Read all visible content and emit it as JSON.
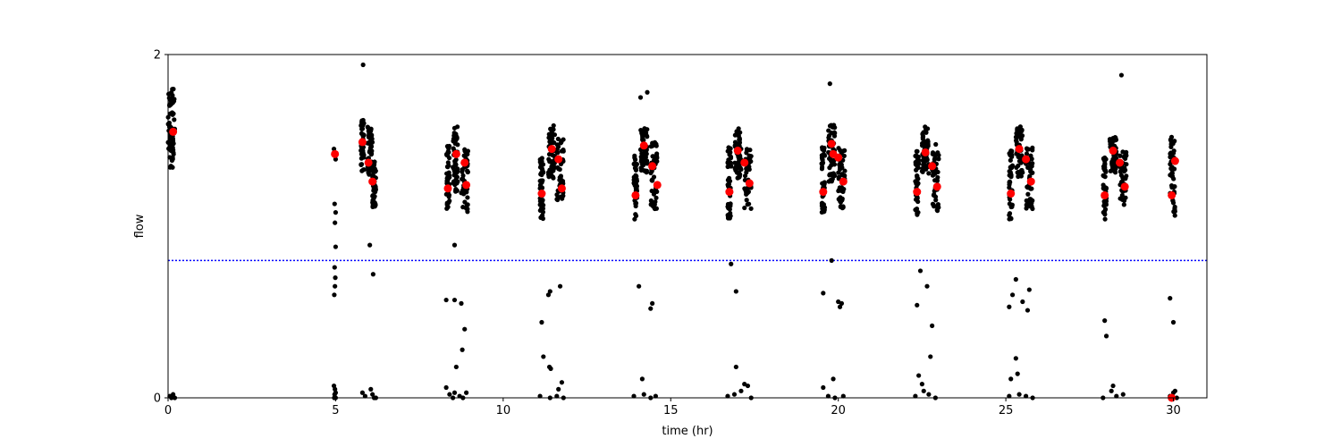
{
  "chart_data": {
    "type": "scatter",
    "title": "",
    "xlabel": "time (hr)",
    "ylabel": "flow",
    "xlim": [
      0,
      31
    ],
    "ylim": [
      0,
      2
    ],
    "xticks": [
      0,
      5,
      10,
      15,
      20,
      25,
      30
    ],
    "yticks": [
      0,
      2
    ],
    "grid": false,
    "threshold_line": {
      "y": 0.8,
      "color": "#0000ff",
      "style": "dotted"
    },
    "colors": {
      "points": "#000000",
      "highlight": "#ff0000",
      "threshold": "#0000ff"
    },
    "clusters": [
      {
        "x": [
          0.0,
          0.2
        ],
        "y": [
          1.34,
          1.8
        ],
        "n": 70
      },
      {
        "x": [
          5.75,
          5.85
        ],
        "y": [
          1.32,
          1.62
        ],
        "n": 45
      },
      {
        "x": [
          5.95,
          6.1
        ],
        "y": [
          1.3,
          1.58
        ],
        "n": 45
      },
      {
        "x": [
          6.1,
          6.2
        ],
        "y": [
          1.1,
          1.38
        ],
        "n": 40
      },
      {
        "x": [
          8.3,
          8.4
        ],
        "y": [
          1.1,
          1.48
        ],
        "n": 40
      },
      {
        "x": [
          8.5,
          8.65
        ],
        "y": [
          1.2,
          1.58
        ],
        "n": 50
      },
      {
        "x": [
          8.75,
          8.95
        ],
        "y": [
          1.08,
          1.45
        ],
        "n": 45
      },
      {
        "x": [
          11.1,
          11.2
        ],
        "y": [
          1.04,
          1.42
        ],
        "n": 45
      },
      {
        "x": [
          11.35,
          11.55
        ],
        "y": [
          1.28,
          1.6
        ],
        "n": 50
      },
      {
        "x": [
          11.6,
          11.8
        ],
        "y": [
          1.14,
          1.52
        ],
        "n": 45
      },
      {
        "x": [
          13.9,
          14.0
        ],
        "y": [
          1.04,
          1.42
        ],
        "n": 45
      },
      {
        "x": [
          14.1,
          14.3
        ],
        "y": [
          1.3,
          1.58
        ],
        "n": 50
      },
      {
        "x": [
          14.4,
          14.6
        ],
        "y": [
          1.1,
          1.5
        ],
        "n": 45
      },
      {
        "x": [
          16.7,
          16.8
        ],
        "y": [
          1.04,
          1.46
        ],
        "n": 45
      },
      {
        "x": [
          16.9,
          17.1
        ],
        "y": [
          1.28,
          1.58
        ],
        "n": 50
      },
      {
        "x": [
          17.2,
          17.4
        ],
        "y": [
          1.1,
          1.48
        ],
        "n": 45
      },
      {
        "x": [
          19.5,
          19.6
        ],
        "y": [
          1.08,
          1.46
        ],
        "n": 45
      },
      {
        "x": [
          19.7,
          19.9
        ],
        "y": [
          1.26,
          1.6
        ],
        "n": 50
      },
      {
        "x": [
          20.0,
          20.2
        ],
        "y": [
          1.1,
          1.46
        ],
        "n": 45
      },
      {
        "x": [
          22.3,
          22.4
        ],
        "y": [
          1.06,
          1.46
        ],
        "n": 45
      },
      {
        "x": [
          22.5,
          22.7
        ],
        "y": [
          1.28,
          1.58
        ],
        "n": 50
      },
      {
        "x": [
          22.8,
          23.0
        ],
        "y": [
          1.08,
          1.48
        ],
        "n": 45
      },
      {
        "x": [
          25.1,
          25.2
        ],
        "y": [
          1.04,
          1.44
        ],
        "n": 45
      },
      {
        "x": [
          25.3,
          25.5
        ],
        "y": [
          1.28,
          1.58
        ],
        "n": 50
      },
      {
        "x": [
          25.6,
          25.8
        ],
        "y": [
          1.1,
          1.46
        ],
        "n": 45
      },
      {
        "x": [
          27.9,
          28.0
        ],
        "y": [
          1.04,
          1.4
        ],
        "n": 45
      },
      {
        "x": [
          28.1,
          28.3
        ],
        "y": [
          1.3,
          1.54
        ],
        "n": 45
      },
      {
        "x": [
          28.4,
          28.6
        ],
        "y": [
          1.12,
          1.44
        ],
        "n": 45
      },
      {
        "x": [
          29.9,
          30.05
        ],
        "y": [
          1.06,
          1.54
        ],
        "n": 45
      }
    ],
    "scattered_points": [
      [
        0.05,
        0.01
      ],
      [
        0.1,
        0.0
      ],
      [
        0.15,
        0.02
      ],
      [
        0.2,
        0.0
      ],
      [
        4.95,
        1.45
      ],
      [
        4.98,
        1.42
      ],
      [
        5.0,
        1.39
      ],
      [
        4.97,
        1.13
      ],
      [
        5.0,
        1.08
      ],
      [
        4.98,
        1.02
      ],
      [
        5.0,
        0.88
      ],
      [
        4.97,
        0.76
      ],
      [
        4.99,
        0.7
      ],
      [
        4.98,
        0.65
      ],
      [
        4.96,
        0.6
      ],
      [
        4.95,
        0.07
      ],
      [
        4.98,
        0.05
      ],
      [
        5.0,
        0.03
      ],
      [
        4.97,
        0.02
      ],
      [
        5.0,
        0.0
      ],
      [
        4.96,
        0.0
      ],
      [
        5.82,
        1.94
      ],
      [
        5.8,
        0.03
      ],
      [
        5.88,
        0.01
      ],
      [
        6.02,
        0.89
      ],
      [
        6.05,
        0.05
      ],
      [
        6.1,
        0.02
      ],
      [
        6.15,
        0.0
      ],
      [
        6.2,
        0.0
      ],
      [
        6.12,
        0.72
      ],
      [
        8.3,
        0.57
      ],
      [
        8.55,
        0.57
      ],
      [
        8.55,
        0.89
      ],
      [
        8.6,
        0.18
      ],
      [
        8.75,
        0.55
      ],
      [
        8.78,
        0.28
      ],
      [
        8.85,
        0.4
      ],
      [
        8.3,
        0.06
      ],
      [
        8.4,
        0.02
      ],
      [
        8.55,
        0.03
      ],
      [
        8.7,
        0.01
      ],
      [
        8.9,
        0.03
      ],
      [
        8.8,
        0.0
      ],
      [
        8.5,
        0.0
      ],
      [
        11.15,
        0.44
      ],
      [
        11.2,
        0.24
      ],
      [
        11.35,
        0.6
      ],
      [
        11.4,
        0.62
      ],
      [
        11.38,
        0.18
      ],
      [
        11.42,
        0.17
      ],
      [
        11.65,
        0.05
      ],
      [
        11.7,
        0.65
      ],
      [
        11.75,
        0.09
      ],
      [
        11.1,
        0.01
      ],
      [
        11.4,
        0.0
      ],
      [
        11.6,
        0.01
      ],
      [
        11.8,
        0.0
      ],
      [
        14.05,
        0.65
      ],
      [
        14.1,
        1.75
      ],
      [
        14.3,
        1.78
      ],
      [
        14.4,
        0.52
      ],
      [
        14.45,
        0.55
      ],
      [
        14.15,
        0.11
      ],
      [
        13.9,
        0.01
      ],
      [
        14.2,
        0.02
      ],
      [
        14.4,
        0.0
      ],
      [
        14.55,
        0.01
      ],
      [
        16.8,
        0.78
      ],
      [
        16.95,
        0.62
      ],
      [
        16.95,
        0.18
      ],
      [
        17.2,
        0.08
      ],
      [
        17.3,
        0.07
      ],
      [
        17.1,
        0.04
      ],
      [
        16.9,
        0.02
      ],
      [
        17.4,
        0.0
      ],
      [
        16.7,
        0.01
      ],
      [
        19.55,
        0.61
      ],
      [
        19.75,
        1.83
      ],
      [
        19.8,
        0.8
      ],
      [
        19.85,
        0.11
      ],
      [
        20.0,
        0.56
      ],
      [
        20.05,
        0.53
      ],
      [
        20.1,
        0.55
      ],
      [
        19.55,
        0.06
      ],
      [
        19.7,
        0.01
      ],
      [
        19.9,
        0.0
      ],
      [
        20.15,
        0.01
      ],
      [
        22.35,
        0.54
      ],
      [
        22.45,
        0.74
      ],
      [
        22.65,
        0.65
      ],
      [
        22.75,
        0.24
      ],
      [
        22.8,
        0.42
      ],
      [
        22.4,
        0.13
      ],
      [
        22.5,
        0.08
      ],
      [
        22.55,
        0.04
      ],
      [
        22.3,
        0.01
      ],
      [
        22.7,
        0.02
      ],
      [
        22.9,
        0.0
      ],
      [
        25.1,
        0.53
      ],
      [
        25.2,
        0.6
      ],
      [
        25.3,
        0.69
      ],
      [
        25.3,
        0.23
      ],
      [
        25.35,
        0.14
      ],
      [
        25.15,
        0.11
      ],
      [
        25.5,
        0.56
      ],
      [
        25.65,
        0.51
      ],
      [
        25.7,
        0.63
      ],
      [
        25.1,
        0.01
      ],
      [
        25.4,
        0.02
      ],
      [
        25.6,
        0.01
      ],
      [
        25.8,
        0.0
      ],
      [
        27.95,
        0.45
      ],
      [
        28.0,
        0.36
      ],
      [
        28.15,
        0.04
      ],
      [
        28.2,
        0.07
      ],
      [
        28.45,
        1.88
      ],
      [
        28.3,
        0.01
      ],
      [
        27.9,
        0.0
      ],
      [
        28.5,
        0.02
      ],
      [
        29.9,
        0.58
      ],
      [
        30.0,
        0.44
      ],
      [
        30.05,
        0.04
      ],
      [
        30.0,
        0.03
      ],
      [
        29.9,
        0.01
      ],
      [
        30.1,
        0.0
      ]
    ],
    "highlight_points": [
      [
        0.15,
        1.55
      ],
      [
        4.98,
        1.42
      ],
      [
        5.8,
        1.49
      ],
      [
        5.98,
        1.37
      ],
      [
        6.1,
        1.26
      ],
      [
        8.35,
        1.22
      ],
      [
        8.6,
        1.42
      ],
      [
        8.85,
        1.37
      ],
      [
        8.9,
        1.24
      ],
      [
        11.15,
        1.19
      ],
      [
        11.45,
        1.45
      ],
      [
        11.65,
        1.39
      ],
      [
        11.75,
        1.22
      ],
      [
        13.95,
        1.18
      ],
      [
        14.2,
        1.47
      ],
      [
        14.45,
        1.35
      ],
      [
        14.6,
        1.24
      ],
      [
        16.75,
        1.2
      ],
      [
        17.0,
        1.44
      ],
      [
        17.2,
        1.37
      ],
      [
        17.35,
        1.25
      ],
      [
        19.55,
        1.2
      ],
      [
        19.8,
        1.48
      ],
      [
        19.85,
        1.42
      ],
      [
        20.0,
        1.4
      ],
      [
        20.15,
        1.26
      ],
      [
        22.35,
        1.2
      ],
      [
        22.6,
        1.43
      ],
      [
        22.8,
        1.35
      ],
      [
        22.95,
        1.23
      ],
      [
        25.15,
        1.19
      ],
      [
        25.4,
        1.45
      ],
      [
        25.6,
        1.39
      ],
      [
        25.75,
        1.26
      ],
      [
        27.95,
        1.18
      ],
      [
        28.2,
        1.44
      ],
      [
        28.4,
        1.37
      ],
      [
        28.55,
        1.23
      ],
      [
        29.95,
        1.18
      ],
      [
        30.05,
        1.38
      ],
      [
        29.95,
        0.0
      ]
    ]
  }
}
